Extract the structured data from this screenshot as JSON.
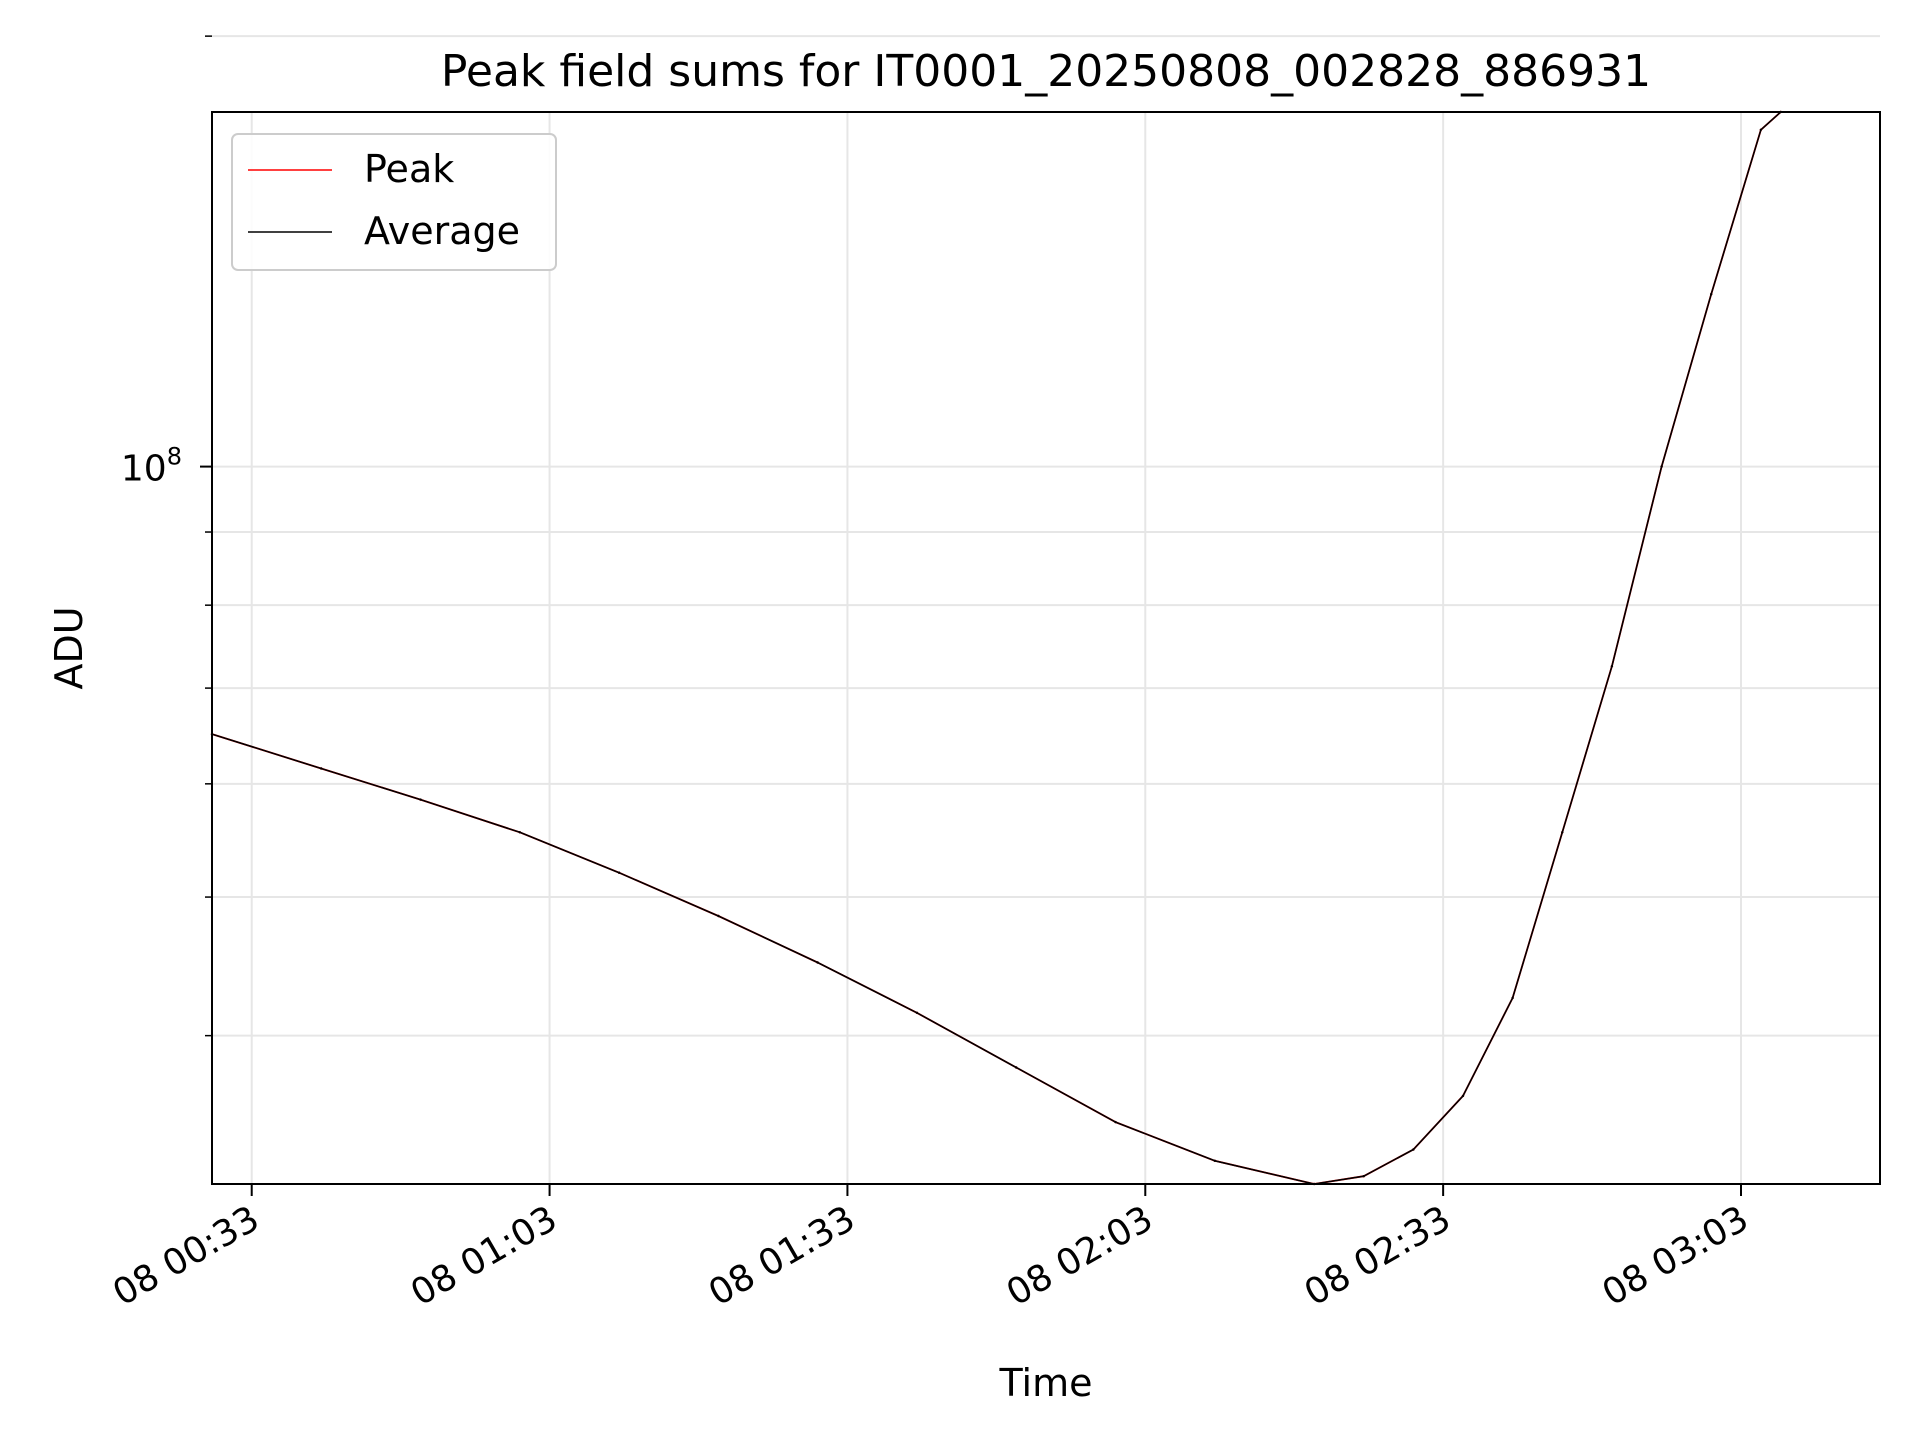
{
  "chart_data": {
    "type": "line",
    "title": "Peak field sums for IT0001_20250808_002828_886931",
    "xlabel": "Time",
    "ylabel": "ADU",
    "x_unit": "time (HH:MM on day 08)",
    "xlim": [
      "00:29",
      "03:17"
    ],
    "ylim": [
      31500000,
      177000000
    ],
    "yscale": "log",
    "y_tick_labels": [
      {
        "value": 100000000,
        "label": "10^8",
        "base": "10",
        "exp": "8"
      }
    ],
    "y_minor_ticks": [
      40000000,
      50000000,
      60000000,
      70000000,
      80000000,
      90000000,
      200000000
    ],
    "x_ticks": [
      "00:33",
      "01:03",
      "01:33",
      "02:03",
      "02:33",
      "03:03"
    ],
    "x_tick_labels": [
      "08 00:33",
      "08 01:03",
      "08 01:33",
      "08 02:03",
      "08 02:33",
      "08 03:03"
    ],
    "grid": true,
    "legend_position": "top-left",
    "series": [
      {
        "name": "Peak",
        "color": "#ff0000",
        "x": [
          "00:29",
          "00:40",
          "00:50",
          "01:00",
          "01:10",
          "01:20",
          "01:30",
          "01:40",
          "01:50",
          "02:00",
          "02:10",
          "02:20",
          "02:25",
          "02:30",
          "02:35",
          "02:40",
          "02:45",
          "02:50",
          "02:55",
          "03:00",
          "03:05",
          "03:07"
        ],
        "y": [
          65000000,
          61500000,
          58500000,
          55500000,
          52000000,
          48500000,
          45000000,
          41500000,
          38000000,
          34800000,
          32700000,
          31500000,
          31900000,
          33300000,
          36300000,
          42500000,
          55500000,
          72500000,
          100000000,
          132000000,
          172000000,
          177000000
        ]
      },
      {
        "name": "Average",
        "color": "#000000",
        "x": [
          "00:29",
          "00:40",
          "00:50",
          "01:00",
          "01:10",
          "01:20",
          "01:30",
          "01:40",
          "01:50",
          "02:00",
          "02:10",
          "02:20",
          "02:25",
          "02:30",
          "02:35",
          "02:40",
          "02:45",
          "02:50",
          "02:55",
          "03:00",
          "03:05",
          "03:07"
        ],
        "y": [
          65000000,
          61500000,
          58500000,
          55500000,
          52000000,
          48500000,
          45000000,
          41500000,
          38000000,
          34800000,
          32700000,
          31500000,
          31900000,
          33300000,
          36300000,
          42500000,
          55500000,
          72500000,
          100000000,
          132000000,
          172000000,
          177000000
        ]
      }
    ]
  }
}
